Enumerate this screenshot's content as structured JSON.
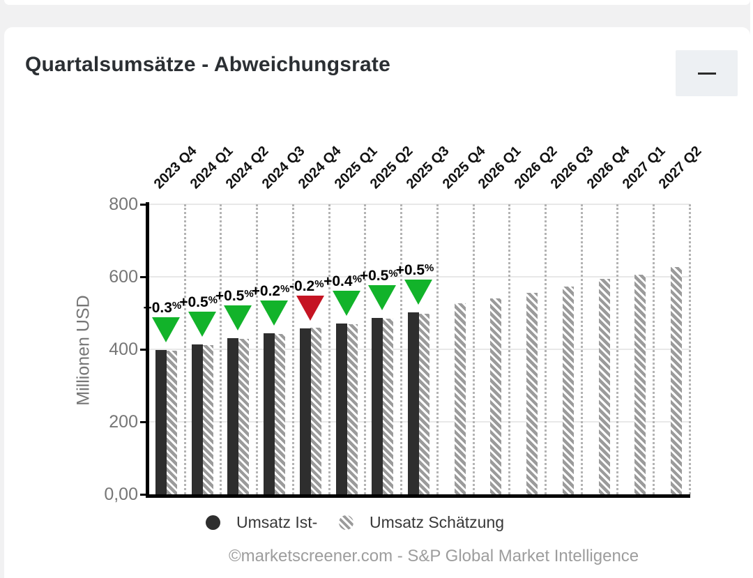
{
  "header": {
    "title": "Quartalsumsätze - Abweichungsrate",
    "minimize_icon": "minus"
  },
  "chart_data": {
    "type": "bar",
    "title": "Quartalsumsätze - Abweichungsrate",
    "xlabel": "",
    "ylabel": "Millionen USD",
    "ylim": [
      0,
      800
    ],
    "ytick_values": [
      0,
      200,
      400,
      600,
      800
    ],
    "ytick_labels": [
      "0,00",
      "200",
      "400",
      "600",
      "800"
    ],
    "grid": true,
    "legend_position": "bottom",
    "categories": [
      "2023 Q4",
      "2024 Q1",
      "2024 Q2",
      "2024 Q3",
      "2024 Q4",
      "2025 Q1",
      "2025 Q2",
      "2025 Q3",
      "2025 Q4",
      "2026 Q1",
      "2026 Q2",
      "2026 Q3",
      "2026 Q4",
      "2027 Q1",
      "2027 Q2"
    ],
    "series": [
      {
        "name": "Umsatz Ist-",
        "values": [
          398,
          414,
          431,
          444,
          458,
          472,
          487,
          501,
          null,
          null,
          null,
          null,
          null,
          null,
          null
        ]
      },
      {
        "name": "Umsatz Schätzung",
        "values": [
          397,
          412,
          429,
          443,
          459,
          470,
          485,
          499,
          526,
          540,
          555,
          574,
          595,
          605,
          626
        ]
      }
    ],
    "annotations": [
      {
        "category": "2023 Q4",
        "label": "+0.3%",
        "negative": false
      },
      {
        "category": "2024 Q1",
        "label": "+0.5%",
        "negative": false
      },
      {
        "category": "2024 Q2",
        "label": "+0.5%",
        "negative": false
      },
      {
        "category": "2024 Q3",
        "label": "+0.2%",
        "negative": false
      },
      {
        "category": "2024 Q4",
        "label": "-0.2%",
        "negative": true
      },
      {
        "category": "2025 Q1",
        "label": "+0.4%",
        "negative": false
      },
      {
        "category": "2025 Q2",
        "label": "+0.5%",
        "negative": false
      },
      {
        "category": "2025 Q3",
        "label": "+0.5%",
        "negative": false
      }
    ],
    "marker_shape": "triangle-down"
  },
  "colors": {
    "positive": "#12b32a",
    "negative": "#c51423",
    "actual_bar": "#2e2e2e",
    "estimate_hatch": "#9b9b9b",
    "axis": "#000000",
    "grid": "#e8e8e8",
    "tick_text": "#767676"
  },
  "footer": {
    "credit": "©marketscreener.com - S&P Global Market Intelligence"
  }
}
